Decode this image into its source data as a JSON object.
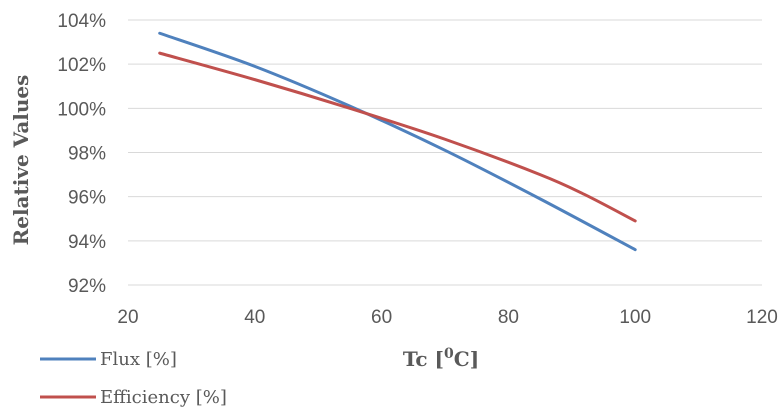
{
  "chart_data": {
    "type": "line",
    "xlabel_main": "Tc [",
    "xlabel_sup": "0",
    "xlabel_end": "C]",
    "ylabel": "Relative Values",
    "xlim": [
      20,
      120
    ],
    "ylim": [
      92,
      104
    ],
    "x_ticks": [
      20,
      40,
      60,
      80,
      100,
      120
    ],
    "y_ticks": [
      92,
      94,
      96,
      98,
      100,
      102,
      104
    ],
    "y_tick_suffix": "%",
    "grid": "horizontal",
    "legend_position": "bottom-left",
    "series": [
      {
        "name": "Flux [%]",
        "color": "#4f81bd",
        "x": [
          25,
          40,
          55,
          70,
          85,
          100
        ],
        "y": [
          103.4,
          101.9,
          100.1,
          98.1,
          95.9,
          93.6
        ]
      },
      {
        "name": "Efficiency [%]",
        "color": "#c0504d",
        "x": [
          25,
          40,
          55,
          70,
          85,
          92,
          100
        ],
        "y": [
          102.5,
          101.3,
          100.0,
          98.6,
          97.0,
          96.1,
          94.9
        ]
      }
    ]
  }
}
